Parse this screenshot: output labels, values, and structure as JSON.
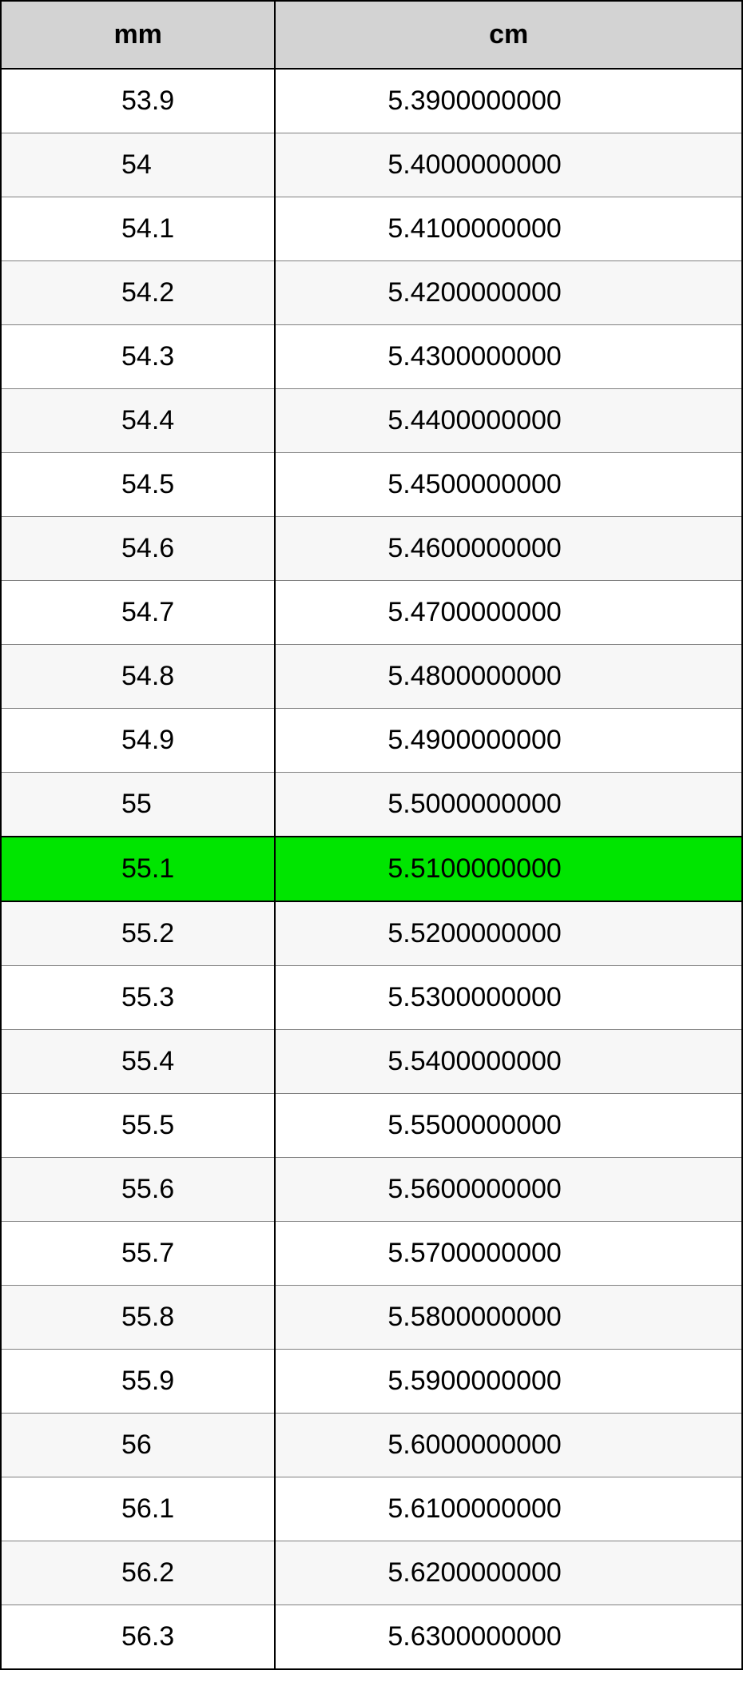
{
  "table": {
    "columns": [
      "mm",
      "cm"
    ],
    "header_bg": "#d3d3d3",
    "border_color": "#000000",
    "alt_row_bg": "#f7f7f7",
    "highlight_bg": "#00e500",
    "font_size": 34,
    "highlighted_index": 12,
    "rows": [
      {
        "mm": "53.9",
        "cm": "5.3900000000"
      },
      {
        "mm": "54",
        "cm": "5.4000000000"
      },
      {
        "mm": "54.1",
        "cm": "5.4100000000"
      },
      {
        "mm": "54.2",
        "cm": "5.4200000000"
      },
      {
        "mm": "54.3",
        "cm": "5.4300000000"
      },
      {
        "mm": "54.4",
        "cm": "5.4400000000"
      },
      {
        "mm": "54.5",
        "cm": "5.4500000000"
      },
      {
        "mm": "54.6",
        "cm": "5.4600000000"
      },
      {
        "mm": "54.7",
        "cm": "5.4700000000"
      },
      {
        "mm": "54.8",
        "cm": "5.4800000000"
      },
      {
        "mm": "54.9",
        "cm": "5.4900000000"
      },
      {
        "mm": "55",
        "cm": "5.5000000000"
      },
      {
        "mm": "55.1",
        "cm": "5.5100000000"
      },
      {
        "mm": "55.2",
        "cm": "5.5200000000"
      },
      {
        "mm": "55.3",
        "cm": "5.5300000000"
      },
      {
        "mm": "55.4",
        "cm": "5.5400000000"
      },
      {
        "mm": "55.5",
        "cm": "5.5500000000"
      },
      {
        "mm": "55.6",
        "cm": "5.5600000000"
      },
      {
        "mm": "55.7",
        "cm": "5.5700000000"
      },
      {
        "mm": "55.8",
        "cm": "5.5800000000"
      },
      {
        "mm": "55.9",
        "cm": "5.5900000000"
      },
      {
        "mm": "56",
        "cm": "5.6000000000"
      },
      {
        "mm": "56.1",
        "cm": "5.6100000000"
      },
      {
        "mm": "56.2",
        "cm": "5.6200000000"
      },
      {
        "mm": "56.3",
        "cm": "5.6300000000"
      }
    ]
  }
}
